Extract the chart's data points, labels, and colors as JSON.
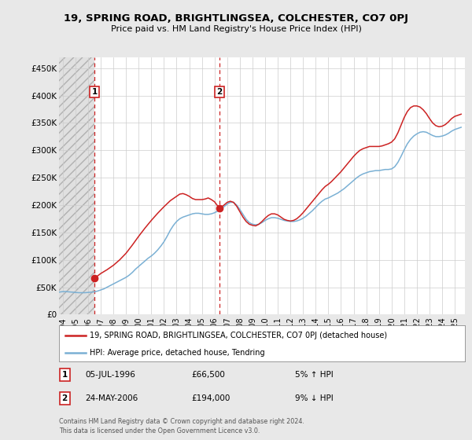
{
  "title": "19, SPRING ROAD, BRIGHTLINGSEA, COLCHESTER, CO7 0PJ",
  "subtitle": "Price paid vs. HM Land Registry's House Price Index (HPI)",
  "ylabel_ticks": [
    "£0",
    "£50K",
    "£100K",
    "£150K",
    "£200K",
    "£250K",
    "£300K",
    "£350K",
    "£400K",
    "£450K"
  ],
  "ylabel_values": [
    0,
    50000,
    100000,
    150000,
    200000,
    250000,
    300000,
    350000,
    400000,
    450000
  ],
  "ylim": [
    0,
    470000
  ],
  "xlim_start": 1993.7,
  "xlim_end": 2025.8,
  "hpi_color": "#7ab0d4",
  "price_color": "#cc2222",
  "bg_color": "#e8e8e8",
  "plot_bg": "#ffffff",
  "grid_color": "#cccccc",
  "transactions": [
    {
      "date": 1996.51,
      "price": 66500,
      "label": "1"
    },
    {
      "date": 2006.39,
      "price": 194000,
      "label": "2"
    }
  ],
  "hpi_data": [
    [
      1993.7,
      41000
    ],
    [
      1994.0,
      42000
    ],
    [
      1994.25,
      42000
    ],
    [
      1994.5,
      41500
    ],
    [
      1994.75,
      41000
    ],
    [
      1995.0,
      40500
    ],
    [
      1995.25,
      40000
    ],
    [
      1995.5,
      40000
    ],
    [
      1995.75,
      40000
    ],
    [
      1996.0,
      40500
    ],
    [
      1996.25,
      41000
    ],
    [
      1996.5,
      41500
    ],
    [
      1996.75,
      43000
    ],
    [
      1997.0,
      45000
    ],
    [
      1997.25,
      47000
    ],
    [
      1997.5,
      50000
    ],
    [
      1997.75,
      53000
    ],
    [
      1998.0,
      56000
    ],
    [
      1998.25,
      59000
    ],
    [
      1998.5,
      62000
    ],
    [
      1998.75,
      65000
    ],
    [
      1999.0,
      68000
    ],
    [
      1999.25,
      72000
    ],
    [
      1999.5,
      77000
    ],
    [
      1999.75,
      83000
    ],
    [
      2000.0,
      88000
    ],
    [
      2000.25,
      93000
    ],
    [
      2000.5,
      98000
    ],
    [
      2000.75,
      103000
    ],
    [
      2001.0,
      107000
    ],
    [
      2001.25,
      112000
    ],
    [
      2001.5,
      118000
    ],
    [
      2001.75,
      125000
    ],
    [
      2002.0,
      133000
    ],
    [
      2002.25,
      143000
    ],
    [
      2002.5,
      154000
    ],
    [
      2002.75,
      163000
    ],
    [
      2003.0,
      170000
    ],
    [
      2003.25,
      175000
    ],
    [
      2003.5,
      178000
    ],
    [
      2003.75,
      180000
    ],
    [
      2004.0,
      182000
    ],
    [
      2004.25,
      184000
    ],
    [
      2004.5,
      185000
    ],
    [
      2004.75,
      185000
    ],
    [
      2005.0,
      184000
    ],
    [
      2005.25,
      183000
    ],
    [
      2005.5,
      183000
    ],
    [
      2005.75,
      184000
    ],
    [
      2006.0,
      186000
    ],
    [
      2006.25,
      189000
    ],
    [
      2006.5,
      193000
    ],
    [
      2006.75,
      197000
    ],
    [
      2007.0,
      202000
    ],
    [
      2007.25,
      205000
    ],
    [
      2007.5,
      205000
    ],
    [
      2007.75,
      200000
    ],
    [
      2008.0,
      192000
    ],
    [
      2008.25,
      183000
    ],
    [
      2008.5,
      174000
    ],
    [
      2008.75,
      168000
    ],
    [
      2009.0,
      165000
    ],
    [
      2009.25,
      164000
    ],
    [
      2009.5,
      165000
    ],
    [
      2009.75,
      168000
    ],
    [
      2010.0,
      172000
    ],
    [
      2010.25,
      175000
    ],
    [
      2010.5,
      177000
    ],
    [
      2010.75,
      177000
    ],
    [
      2011.0,
      176000
    ],
    [
      2011.25,
      174000
    ],
    [
      2011.5,
      172000
    ],
    [
      2011.75,
      171000
    ],
    [
      2012.0,
      170000
    ],
    [
      2012.25,
      170000
    ],
    [
      2012.5,
      171000
    ],
    [
      2012.75,
      173000
    ],
    [
      2013.0,
      176000
    ],
    [
      2013.25,
      180000
    ],
    [
      2013.5,
      185000
    ],
    [
      2013.75,
      190000
    ],
    [
      2014.0,
      196000
    ],
    [
      2014.25,
      202000
    ],
    [
      2014.5,
      207000
    ],
    [
      2014.75,
      211000
    ],
    [
      2015.0,
      213000
    ],
    [
      2015.25,
      216000
    ],
    [
      2015.5,
      219000
    ],
    [
      2015.75,
      222000
    ],
    [
      2016.0,
      226000
    ],
    [
      2016.25,
      230000
    ],
    [
      2016.5,
      235000
    ],
    [
      2016.75,
      240000
    ],
    [
      2017.0,
      245000
    ],
    [
      2017.25,
      250000
    ],
    [
      2017.5,
      254000
    ],
    [
      2017.75,
      257000
    ],
    [
      2018.0,
      259000
    ],
    [
      2018.25,
      261000
    ],
    [
      2018.5,
      262000
    ],
    [
      2018.75,
      263000
    ],
    [
      2019.0,
      263000
    ],
    [
      2019.25,
      264000
    ],
    [
      2019.5,
      265000
    ],
    [
      2019.75,
      265000
    ],
    [
      2020.0,
      266000
    ],
    [
      2020.25,
      270000
    ],
    [
      2020.5,
      278000
    ],
    [
      2020.75,
      289000
    ],
    [
      2021.0,
      301000
    ],
    [
      2021.25,
      312000
    ],
    [
      2021.5,
      320000
    ],
    [
      2021.75,
      326000
    ],
    [
      2022.0,
      330000
    ],
    [
      2022.25,
      333000
    ],
    [
      2022.5,
      334000
    ],
    [
      2022.75,
      333000
    ],
    [
      2023.0,
      330000
    ],
    [
      2023.25,
      327000
    ],
    [
      2023.5,
      325000
    ],
    [
      2023.75,
      325000
    ],
    [
      2024.0,
      326000
    ],
    [
      2024.25,
      328000
    ],
    [
      2024.5,
      331000
    ],
    [
      2024.75,
      335000
    ],
    [
      2025.0,
      338000
    ],
    [
      2025.5,
      342000
    ]
  ],
  "price_data": [
    [
      1996.51,
      66500
    ],
    [
      1997.0,
      75000
    ],
    [
      1997.5,
      82000
    ],
    [
      1998.0,
      90000
    ],
    [
      1998.5,
      100000
    ],
    [
      1999.0,
      112000
    ],
    [
      1999.5,
      127000
    ],
    [
      2000.0,
      143000
    ],
    [
      2000.5,
      158000
    ],
    [
      2001.0,
      172000
    ],
    [
      2001.5,
      185000
    ],
    [
      2002.0,
      197000
    ],
    [
      2002.5,
      208000
    ],
    [
      2003.0,
      216000
    ],
    [
      2003.25,
      220000
    ],
    [
      2003.5,
      221000
    ],
    [
      2003.75,
      219000
    ],
    [
      2004.0,
      216000
    ],
    [
      2004.25,
      212000
    ],
    [
      2004.5,
      210000
    ],
    [
      2004.75,
      210000
    ],
    [
      2005.0,
      210000
    ],
    [
      2005.25,
      211000
    ],
    [
      2005.5,
      213000
    ],
    [
      2005.75,
      210000
    ],
    [
      2006.0,
      206000
    ],
    [
      2006.39,
      194000
    ],
    [
      2006.5,
      196000
    ],
    [
      2006.75,
      200000
    ],
    [
      2007.0,
      205000
    ],
    [
      2007.25,
      207000
    ],
    [
      2007.5,
      205000
    ],
    [
      2007.75,
      198000
    ],
    [
      2008.0,
      188000
    ],
    [
      2008.25,
      178000
    ],
    [
      2008.5,
      170000
    ],
    [
      2008.75,
      165000
    ],
    [
      2009.0,
      163000
    ],
    [
      2009.25,
      162000
    ],
    [
      2009.5,
      165000
    ],
    [
      2009.75,
      170000
    ],
    [
      2010.0,
      176000
    ],
    [
      2010.25,
      181000
    ],
    [
      2010.5,
      184000
    ],
    [
      2010.75,
      184000
    ],
    [
      2011.0,
      182000
    ],
    [
      2011.25,
      178000
    ],
    [
      2011.5,
      174000
    ],
    [
      2011.75,
      172000
    ],
    [
      2012.0,
      171000
    ],
    [
      2012.25,
      172000
    ],
    [
      2012.5,
      175000
    ],
    [
      2012.75,
      180000
    ],
    [
      2013.0,
      186000
    ],
    [
      2013.25,
      193000
    ],
    [
      2013.5,
      200000
    ],
    [
      2013.75,
      207000
    ],
    [
      2014.0,
      214000
    ],
    [
      2014.25,
      221000
    ],
    [
      2014.5,
      228000
    ],
    [
      2014.75,
      234000
    ],
    [
      2015.0,
      238000
    ],
    [
      2015.25,
      243000
    ],
    [
      2015.5,
      249000
    ],
    [
      2015.75,
      255000
    ],
    [
      2016.0,
      261000
    ],
    [
      2016.25,
      268000
    ],
    [
      2016.5,
      275000
    ],
    [
      2016.75,
      282000
    ],
    [
      2017.0,
      289000
    ],
    [
      2017.25,
      295000
    ],
    [
      2017.5,
      300000
    ],
    [
      2017.75,
      303000
    ],
    [
      2018.0,
      305000
    ],
    [
      2018.25,
      307000
    ],
    [
      2018.5,
      307000
    ],
    [
      2018.75,
      307000
    ],
    [
      2019.0,
      307000
    ],
    [
      2019.25,
      308000
    ],
    [
      2019.5,
      310000
    ],
    [
      2019.75,
      312000
    ],
    [
      2020.0,
      315000
    ],
    [
      2020.25,
      321000
    ],
    [
      2020.5,
      332000
    ],
    [
      2020.75,
      346000
    ],
    [
      2021.0,
      360000
    ],
    [
      2021.25,
      371000
    ],
    [
      2021.5,
      378000
    ],
    [
      2021.75,
      381000
    ],
    [
      2022.0,
      381000
    ],
    [
      2022.25,
      379000
    ],
    [
      2022.5,
      374000
    ],
    [
      2022.75,
      367000
    ],
    [
      2023.0,
      358000
    ],
    [
      2023.25,
      350000
    ],
    [
      2023.5,
      345000
    ],
    [
      2023.75,
      343000
    ],
    [
      2024.0,
      344000
    ],
    [
      2024.25,
      347000
    ],
    [
      2024.5,
      352000
    ],
    [
      2024.75,
      358000
    ],
    [
      2025.0,
      362000
    ],
    [
      2025.5,
      366000
    ]
  ],
  "legend_house_label": "19, SPRING ROAD, BRIGHTLINGSEA, COLCHESTER, CO7 0PJ (detached house)",
  "legend_hpi_label": "HPI: Average price, detached house, Tendring",
  "annotation1_label": "1",
  "annotation1_date": "05-JUL-1996",
  "annotation1_price": "£66,500",
  "annotation1_hpi": "5% ↑ HPI",
  "annotation2_label": "2",
  "annotation2_date": "24-MAY-2006",
  "annotation2_price": "£194,000",
  "annotation2_hpi": "9% ↓ HPI",
  "footer": "Contains HM Land Registry data © Crown copyright and database right 2024.\nThis data is licensed under the Open Government Licence v3.0.",
  "xticks": [
    1994,
    1995,
    1996,
    1997,
    1998,
    1999,
    2000,
    2001,
    2002,
    2003,
    2004,
    2005,
    2006,
    2007,
    2008,
    2009,
    2010,
    2011,
    2012,
    2013,
    2014,
    2015,
    2016,
    2017,
    2018,
    2019,
    2020,
    2021,
    2022,
    2023,
    2024,
    2025
  ],
  "xtick_labels": [
    "1994",
    "1995",
    "1996",
    "1997",
    "1998",
    "1999",
    "2000",
    "2001",
    "2002",
    "2003",
    "2004",
    "2005",
    "2006",
    "2007",
    "2008",
    "2009",
    "2010",
    "2011",
    "2012",
    "2013",
    "2014",
    "2015",
    "2016",
    "2017",
    "2018",
    "2019",
    "2020",
    "2021",
    "2022",
    "2023",
    "2024",
    "2025"
  ]
}
